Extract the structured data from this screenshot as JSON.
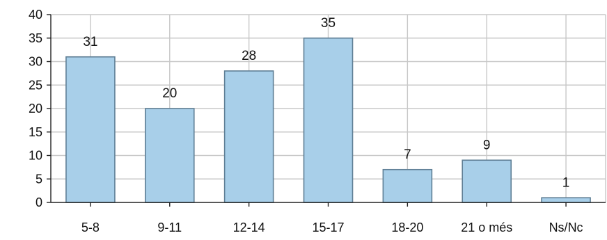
{
  "chart_data": {
    "type": "bar",
    "categories": [
      "5-8",
      "9-11",
      "12-14",
      "15-17",
      "18-20",
      "21 o més",
      "Ns/Nc"
    ],
    "values": [
      31,
      20,
      28,
      35,
      7,
      9,
      1
    ],
    "data_labels": [
      "31",
      "20",
      "28",
      "35",
      "7",
      "9",
      "1"
    ],
    "y_ticks": [
      0,
      5,
      10,
      15,
      20,
      25,
      30,
      35,
      40
    ],
    "ylim": [
      0,
      40
    ],
    "grid": true,
    "legend": "none",
    "colors": {
      "bar_fill": "#a8cfe9",
      "bar_stroke": "#5f7f95",
      "grid": "#c8c8c8",
      "axis": "#222222"
    }
  }
}
